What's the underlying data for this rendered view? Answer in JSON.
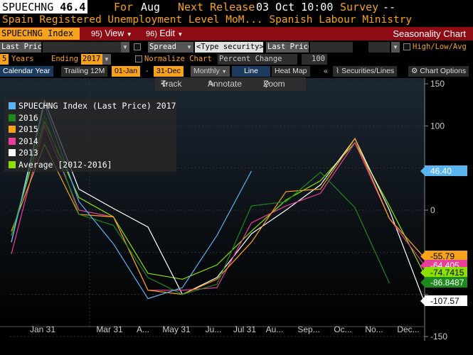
{
  "header": {
    "ticker": "SPUECHNG",
    "last_value": "46.4",
    "for_label": "For",
    "for_month": "Aug",
    "next_release_label": "Next Release",
    "next_release_value": "03 Oct 10:00",
    "survey_label": "Survey",
    "survey_value": "--",
    "description": "Spain Registered Unemployment Level MoM... Spanish Labour Ministry"
  },
  "toolbar": {
    "ticker_field": "SPUECHNG Index",
    "view_num": "95)",
    "view_label": "View",
    "edit_num": "96)",
    "edit_label": "Edit",
    "title": "Seasonality Chart"
  },
  "controls": {
    "field1": "Last Price",
    "spread": "Spread",
    "type_security": "<Type security>",
    "field2": "Last Price",
    "high_low_avg": "High/Low/Avg",
    "years_count": "5",
    "years_label": "Years",
    "ending_label": "Ending",
    "ending_year": "2017",
    "normalize_label": "Normalize Chart",
    "percent_change": "Percent Change",
    "percent_value": "100"
  },
  "tabs": {
    "calendar_year": "Calendar Year",
    "trailing": "Trailing 12M",
    "from": "01-Jan",
    "dash": "-",
    "to": "31-Dec",
    "period": "Monthly",
    "line": "Line",
    "heat_map": "Heat Map",
    "collapse": "«",
    "securities_lines": "Securities/Lines",
    "chart_options": "Chart Options"
  },
  "tools": {
    "track": "Track",
    "annotate": "Annotate",
    "zoom": "Zoom"
  },
  "colors": {
    "2017": "#5ab4f0",
    "2016": "#1e8a1e",
    "2015": "#f6a21a",
    "2014": "#e8409a",
    "2013": "#ffffff",
    "average": "#8ce000",
    "accent_orange": "#f6a21a",
    "toolbar_red": "#8e0b14"
  },
  "chart_data": {
    "type": "line",
    "x_tick_labels": [
      "Jan 31",
      "Mar 31",
      "A...",
      "May 31",
      "Ju...",
      "Jul 31",
      "Au...",
      "Sep...",
      "Oc...",
      "No...",
      "Dec..."
    ],
    "y_ticks": [
      150,
      100,
      50,
      0,
      -50,
      -100,
      -150
    ],
    "y_tick_labels": [
      "150",
      "100",
      "",
      "0",
      "",
      "",
      "-150"
    ],
    "ylim": [
      -150,
      150
    ],
    "series": [
      {
        "name": "SPUECHNG Index (Last Price) 2017",
        "color": "#5ab4f0",
        "values": [
          -38,
          125,
          10,
          -40,
          -105,
          -92,
          -30,
          46.4
        ]
      },
      {
        "name": "2016",
        "color": "#1e8a1e",
        "values": [
          -30,
          112,
          -5,
          -18,
          -80,
          -100,
          -88,
          5,
          10,
          45,
          3,
          -86.8487
        ]
      },
      {
        "name": "2015",
        "color": "#f6a21a",
        "values": [
          -25,
          78,
          -5,
          -8,
          -95,
          -100,
          -82,
          -38,
          22,
          25,
          85,
          -10,
          -55.79
        ]
      },
      {
        "name": "2014",
        "color": "#e8409a",
        "values": [
          -52,
          100,
          0,
          -8,
          -95,
          -95,
          -92,
          -15,
          5,
          20,
          80,
          -10,
          -64.405
        ]
      },
      {
        "name": "2013",
        "color": "#ffffff",
        "values": [
          -38,
          130,
          25,
          2,
          -20,
          -100,
          -80,
          -28,
          0,
          30,
          85,
          0,
          -107.57
        ]
      },
      {
        "name": "Average [2012-2016]",
        "color": "#8ce000",
        "values": [
          -30,
          105,
          15,
          -8,
          -75,
          -82,
          -65,
          -25,
          12,
          35,
          80,
          5,
          -74.7415
        ]
      }
    ],
    "value_labels": [
      {
        "text": "46.40",
        "series": "2017"
      },
      {
        "text": "-55.79",
        "series": "2015"
      },
      {
        "text": "-64.405",
        "series": "2014"
      },
      {
        "text": "-74.7415",
        "series": "average"
      },
      {
        "text": "-86.8487",
        "series": "2016"
      },
      {
        "text": "-107.57",
        "series": "2013"
      }
    ]
  }
}
